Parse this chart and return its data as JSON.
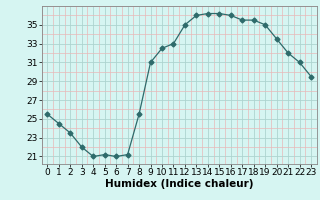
{
  "x": [
    0,
    1,
    2,
    3,
    4,
    5,
    6,
    7,
    8,
    9,
    10,
    11,
    12,
    13,
    14,
    15,
    16,
    17,
    18,
    19,
    20,
    21,
    22,
    23
  ],
  "y": [
    25.5,
    24.5,
    23.5,
    22.0,
    21.0,
    21.2,
    21.0,
    21.2,
    25.5,
    31.0,
    32.5,
    33.0,
    35.0,
    36.0,
    36.2,
    36.2,
    36.0,
    35.5,
    35.5,
    35.0,
    33.5,
    32.0,
    31.0,
    29.5
  ],
  "line_color": "#2e6b6b",
  "marker": "D",
  "marker_size": 2.5,
  "bg_color": "#d6f5f2",
  "grid_major_color": "#aed4d0",
  "grid_minor_color": "#e8b8b8",
  "xlabel": "Humidex (Indice chaleur)",
  "xlim": [
    -0.5,
    23.5
  ],
  "ylim": [
    20.2,
    37.0
  ],
  "yticks": [
    21,
    23,
    25,
    27,
    29,
    31,
    33,
    35
  ],
  "xticks": [
    0,
    1,
    2,
    3,
    4,
    5,
    6,
    7,
    8,
    9,
    10,
    11,
    12,
    13,
    14,
    15,
    16,
    17,
    18,
    19,
    20,
    21,
    22,
    23
  ],
  "xlabel_fontsize": 7.5,
  "tick_fontsize": 6.5
}
